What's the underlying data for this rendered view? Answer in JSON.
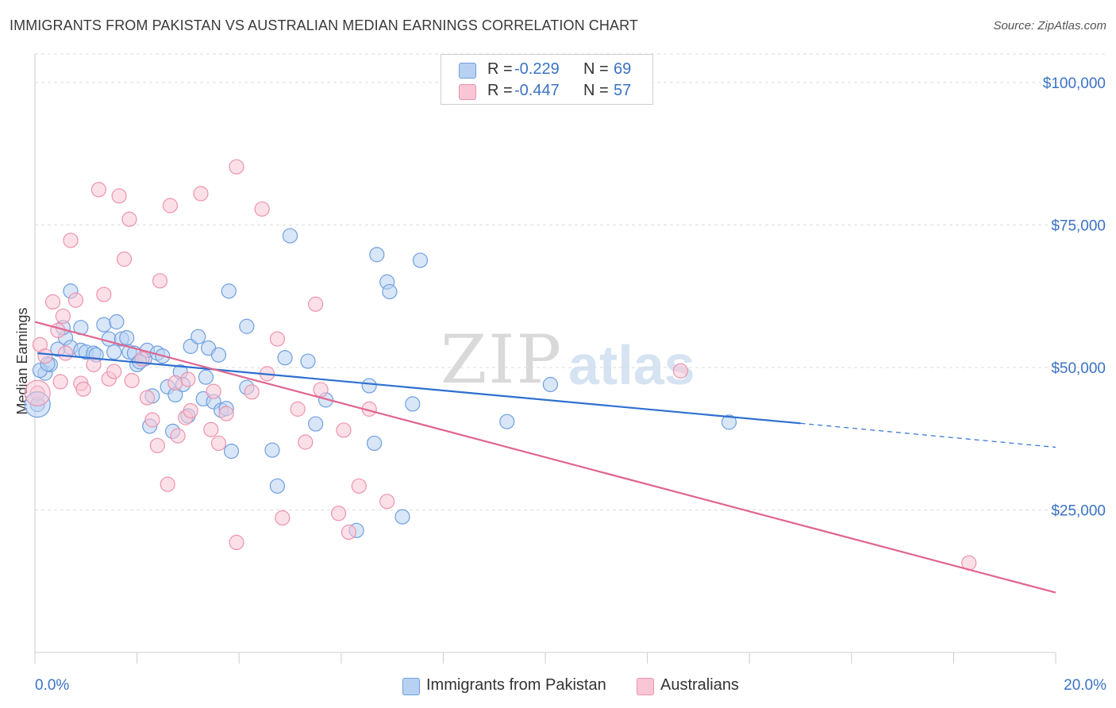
{
  "title": "IMMIGRANTS FROM PAKISTAN VS AUSTRALIAN MEDIAN EARNINGS CORRELATION CHART",
  "source": "Source: ZipAtlas.com",
  "watermark": {
    "zip": "ZIP",
    "atlas": "atlas"
  },
  "legend": {
    "r_label": "R =",
    "n_label": "N =",
    "rows": [
      {
        "r": "-0.229",
        "n": "69",
        "fill": "#b8d1f3",
        "stroke": "#6f9fdf"
      },
      {
        "r": "-0.447",
        "n": "57",
        "fill": "#f9c6d5",
        "stroke": "#ec93ae"
      }
    ]
  },
  "bottom_legend": [
    {
      "label": "Immigrants from Pakistan",
      "fill": "#b8d1f3",
      "stroke": "#6f9fdf"
    },
    {
      "label": "Australians",
      "fill": "#f9c6d5",
      "stroke": "#ec93ae"
    }
  ],
  "chart_data": {
    "type": "scatter",
    "title": "IMMIGRANTS FROM PAKISTAN VS AUSTRALIAN MEDIAN EARNINGS CORRELATION CHART",
    "xlabel": "",
    "ylabel": "Median Earnings",
    "xlim": [
      0,
      20
    ],
    "ylim": [
      0,
      105000
    ],
    "x_tick_labels": [
      "0.0%",
      "20.0%"
    ],
    "y_ticks": [
      25000,
      50000,
      75000,
      100000
    ],
    "y_tick_labels": [
      "$25,000",
      "$50,000",
      "$75,000",
      "$100,000"
    ],
    "grid": "horizontal dashed",
    "colors": {
      "blue": "#3b73c4",
      "blue_line": "#2d6fd0",
      "pink_line": "#e0648f",
      "axis_text": "#3b73c4"
    },
    "series": [
      {
        "name": "Immigrants from Pakistan",
        "color": "#6f9fdf",
        "fill": "#b8d1f3",
        "trend": {
          "x0": 0.05,
          "y0": 52500,
          "x1": 15.0,
          "y1": 40200,
          "dash_to_x": 20.0,
          "dash_to_y": 36000
        },
        "points": [
          [
            0.05,
            43500
          ],
          [
            0.2,
            49000
          ],
          [
            0.3,
            50500
          ],
          [
            0.45,
            53200
          ],
          [
            0.6,
            55200
          ],
          [
            0.7,
            53500
          ],
          [
            0.7,
            63400
          ],
          [
            0.9,
            57000
          ],
          [
            0.9,
            53000
          ],
          [
            1.0,
            52700
          ],
          [
            1.15,
            52500
          ],
          [
            1.35,
            57500
          ],
          [
            1.45,
            55000
          ],
          [
            1.55,
            52700
          ],
          [
            1.6,
            58000
          ],
          [
            1.7,
            55000
          ],
          [
            1.8,
            55200
          ],
          [
            1.85,
            52700
          ],
          [
            1.95,
            52500
          ],
          [
            2.0,
            50500
          ],
          [
            2.15,
            51500
          ],
          [
            2.2,
            53000
          ],
          [
            2.25,
            39700
          ],
          [
            2.3,
            45000
          ],
          [
            2.4,
            52500
          ],
          [
            2.5,
            52000
          ],
          [
            2.6,
            46600
          ],
          [
            2.7,
            38800
          ],
          [
            2.75,
            45200
          ],
          [
            2.85,
            49200
          ],
          [
            2.9,
            47000
          ],
          [
            3.0,
            41500
          ],
          [
            3.05,
            53700
          ],
          [
            3.2,
            55400
          ],
          [
            3.3,
            44500
          ],
          [
            3.35,
            48300
          ],
          [
            3.4,
            53400
          ],
          [
            3.5,
            44000
          ],
          [
            3.6,
            52200
          ],
          [
            3.65,
            42500
          ],
          [
            3.75,
            42800
          ],
          [
            3.8,
            63400
          ],
          [
            3.85,
            35300
          ],
          [
            4.15,
            46500
          ],
          [
            4.15,
            57200
          ],
          [
            4.65,
            35500
          ],
          [
            4.75,
            29200
          ],
          [
            4.9,
            51700
          ],
          [
            5.0,
            73100
          ],
          [
            5.35,
            51100
          ],
          [
            5.5,
            40100
          ],
          [
            5.7,
            44300
          ],
          [
            6.3,
            21400
          ],
          [
            6.55,
            46800
          ],
          [
            6.65,
            36700
          ],
          [
            6.7,
            69800
          ],
          [
            6.9,
            65000
          ],
          [
            6.95,
            63300
          ],
          [
            7.2,
            23800
          ],
          [
            7.4,
            43600
          ],
          [
            7.55,
            68800
          ],
          [
            9.25,
            40500
          ],
          [
            10.1,
            47000
          ],
          [
            13.6,
            40400
          ],
          [
            0.1,
            49500
          ],
          [
            0.25,
            50600
          ],
          [
            1.2,
            52200
          ],
          [
            2.05,
            51000
          ],
          [
            0.55,
            57000
          ]
        ]
      },
      {
        "name": "Australians",
        "color": "#ec93ae",
        "fill": "#f9c6d5",
        "trend": {
          "x0": 0.0,
          "y0": 58000,
          "x1": 20.0,
          "y1": 10500
        },
        "points": [
          [
            0.05,
            45500
          ],
          [
            0.1,
            54000
          ],
          [
            0.2,
            52000
          ],
          [
            0.35,
            61500
          ],
          [
            0.45,
            56500
          ],
          [
            0.5,
            47500
          ],
          [
            0.55,
            59000
          ],
          [
            0.6,
            52500
          ],
          [
            0.7,
            72300
          ],
          [
            0.8,
            61800
          ],
          [
            0.9,
            47200
          ],
          [
            0.95,
            46200
          ],
          [
            1.15,
            50500
          ],
          [
            1.25,
            81200
          ],
          [
            1.35,
            62800
          ],
          [
            1.45,
            48000
          ],
          [
            1.55,
            49300
          ],
          [
            1.65,
            80100
          ],
          [
            1.75,
            69000
          ],
          [
            1.85,
            76000
          ],
          [
            1.9,
            47700
          ],
          [
            2.1,
            51500
          ],
          [
            2.2,
            44700
          ],
          [
            2.3,
            40800
          ],
          [
            2.4,
            36300
          ],
          [
            2.45,
            65200
          ],
          [
            2.6,
            29500
          ],
          [
            2.65,
            78400
          ],
          [
            2.75,
            47300
          ],
          [
            2.8,
            38000
          ],
          [
            2.95,
            41200
          ],
          [
            3.0,
            47900
          ],
          [
            3.05,
            42400
          ],
          [
            3.25,
            80500
          ],
          [
            3.45,
            39100
          ],
          [
            3.5,
            45800
          ],
          [
            3.6,
            36700
          ],
          [
            3.75,
            41900
          ],
          [
            3.95,
            19300
          ],
          [
            3.95,
            85200
          ],
          [
            4.25,
            45700
          ],
          [
            4.45,
            77800
          ],
          [
            4.55,
            48900
          ],
          [
            4.75,
            55000
          ],
          [
            4.85,
            23600
          ],
          [
            5.15,
            42700
          ],
          [
            5.3,
            36900
          ],
          [
            5.5,
            61100
          ],
          [
            5.6,
            46100
          ],
          [
            5.95,
            24400
          ],
          [
            6.05,
            39000
          ],
          [
            6.15,
            21100
          ],
          [
            6.35,
            29200
          ],
          [
            6.55,
            42700
          ],
          [
            6.9,
            26500
          ],
          [
            12.65,
            49400
          ],
          [
            18.3,
            15700
          ]
        ]
      }
    ]
  }
}
